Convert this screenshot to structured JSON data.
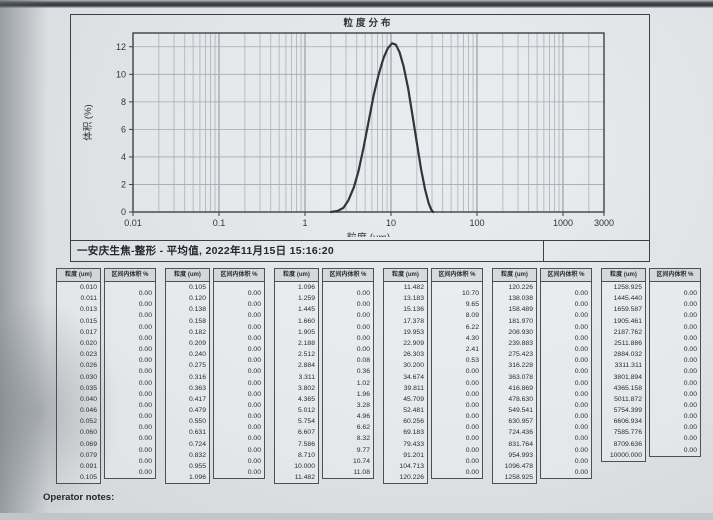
{
  "colors": {
    "ink": "#2f343a",
    "frame": "#3c4147",
    "grid": "#a3a9af",
    "grid_major": "#8a9096",
    "curve": "#31363c",
    "paper": "#dfe2e5",
    "tborder": "#4b5157"
  },
  "chart": {
    "title": "粒度分布",
    "ylabel": "体积 (%)",
    "xlabel": "粒度 (um)",
    "caption": "一安庆生焦-整形 - 平均值, 2022年11月15日 15:16:20"
  },
  "chart_data": {
    "type": "line",
    "title": "粒度分布",
    "xlabel": "粒度 (um)",
    "ylabel": "体积 (%)",
    "x_scale": "log",
    "xlim": [
      0.01,
      3000
    ],
    "ylim": [
      0,
      13
    ],
    "x_ticks": [
      "0.01",
      "0.1",
      "1",
      "10",
      "100",
      "1000",
      "3000"
    ],
    "y_ticks": [
      12,
      10,
      8,
      6,
      4,
      2,
      0
    ],
    "grid": true,
    "legend_position": "caption-below-chart",
    "series": [
      {
        "name": "安庆生焦-整形 - 平均值 2022年11月15日 15:16:20",
        "points": [
          [
            2.0,
            0
          ],
          [
            2.4,
            0.08
          ],
          [
            2.8,
            0.3
          ],
          [
            3.2,
            0.85
          ],
          [
            3.7,
            1.8
          ],
          [
            4.2,
            3.0
          ],
          [
            4.8,
            4.7
          ],
          [
            5.5,
            6.6
          ],
          [
            6.3,
            8.5
          ],
          [
            7.2,
            10.0
          ],
          [
            8.2,
            11.2
          ],
          [
            9.2,
            11.9
          ],
          [
            10.3,
            12.25
          ],
          [
            11.4,
            12.15
          ],
          [
            12.6,
            11.6
          ],
          [
            14.0,
            10.6
          ],
          [
            15.8,
            9.0
          ],
          [
            17.8,
            7.0
          ],
          [
            20.0,
            5.0
          ],
          [
            22.4,
            3.1
          ],
          [
            25.0,
            1.6
          ],
          [
            27.5,
            0.6
          ],
          [
            29.5,
            0.15
          ],
          [
            31.0,
            0
          ]
        ]
      }
    ]
  },
  "tables": {
    "size_header": "粒度 (um)",
    "volume_header": "区间内体积 %",
    "groups": [
      {
        "sizes": [
          "0.010",
          "0.011",
          "0.013",
          "0.015",
          "0.017",
          "0.020",
          "0.023",
          "0.026",
          "0.030",
          "0.035",
          "0.040",
          "0.046",
          "0.052",
          "0.060",
          "0.069",
          "0.079",
          "0.091",
          "0.105"
        ],
        "volumes": [
          "0.00",
          "0.00",
          "0.00",
          "0.00",
          "0.00",
          "0.00",
          "0.00",
          "0.00",
          "0.00",
          "0.00",
          "0.00",
          "0.00",
          "0.00",
          "0.00",
          "0.00",
          "0.00",
          "0.00"
        ]
      },
      {
        "sizes": [
          "0.105",
          "0.120",
          "0.138",
          "0.158",
          "0.182",
          "0.209",
          "0.240",
          "0.275",
          "0.316",
          "0.363",
          "0.417",
          "0.479",
          "0.550",
          "0.631",
          "0.724",
          "0.832",
          "0.955",
          "1.096"
        ],
        "volumes": [
          "0.00",
          "0.00",
          "0.00",
          "0.00",
          "0.00",
          "0.00",
          "0.00",
          "0.00",
          "0.00",
          "0.00",
          "0.00",
          "0.00",
          "0.00",
          "0.00",
          "0.00",
          "0.00",
          "0.00"
        ]
      },
      {
        "sizes": [
          "1.096",
          "1.259",
          "1.445",
          "1.660",
          "1.905",
          "2.188",
          "2.512",
          "2.884",
          "3.311",
          "3.802",
          "4.365",
          "5.012",
          "5.754",
          "6.607",
          "7.586",
          "8.710",
          "10.000",
          "11.482"
        ],
        "volumes": [
          "0.00",
          "0.00",
          "0.00",
          "0.00",
          "0.00",
          "0.00",
          "0.08",
          "0.36",
          "1.02",
          "1.96",
          "3.28",
          "4.96",
          "6.62",
          "8.32",
          "9.77",
          "10.74",
          "11.08"
        ]
      },
      {
        "sizes": [
          "11.482",
          "13.183",
          "15.136",
          "17.378",
          "19.953",
          "22.909",
          "26.303",
          "30.200",
          "34.674",
          "39.811",
          "45.709",
          "52.481",
          "60.256",
          "69.183",
          "79.433",
          "91.201",
          "104.713",
          "120.226"
        ],
        "volumes": [
          "10.70",
          "9.65",
          "8.09",
          "6.22",
          "4.30",
          "2.41",
          "0.53",
          "0.00",
          "0.00",
          "0.00",
          "0.00",
          "0.00",
          "0.00",
          "0.00",
          "0.00",
          "0.00",
          "0.00"
        ]
      },
      {
        "sizes": [
          "120.226",
          "138.038",
          "158.489",
          "181.970",
          "208.930",
          "239.883",
          "275.423",
          "316.228",
          "363.078",
          "416.869",
          "478.630",
          "549.541",
          "630.957",
          "724.436",
          "831.764",
          "954.993",
          "1096.478",
          "1258.925"
        ],
        "volumes": [
          "0.00",
          "0.00",
          "0.00",
          "0.00",
          "0.00",
          "0.00",
          "0.00",
          "0.00",
          "0.00",
          "0.00",
          "0.00",
          "0.00",
          "0.00",
          "0.00",
          "0.00",
          "0.00",
          "0.00"
        ]
      },
      {
        "sizes": [
          "1258.925",
          "1445.440",
          "1659.587",
          "1905.461",
          "2187.762",
          "2511.886",
          "2884.032",
          "3311.311",
          "3801.894",
          "4365.158",
          "5011.872",
          "5754.399",
          "6606.934",
          "7585.776",
          "8709.636",
          "10000.000"
        ],
        "volumes": [
          "0.00",
          "0.00",
          "0.00",
          "0.00",
          "0.00",
          "0.00",
          "0.00",
          "0.00",
          "0.00",
          "0.00",
          "0.00",
          "0.00",
          "0.00",
          "0.00",
          "0.00"
        ]
      }
    ]
  },
  "footer": {
    "operator_notes_label": "Operator notes:"
  }
}
